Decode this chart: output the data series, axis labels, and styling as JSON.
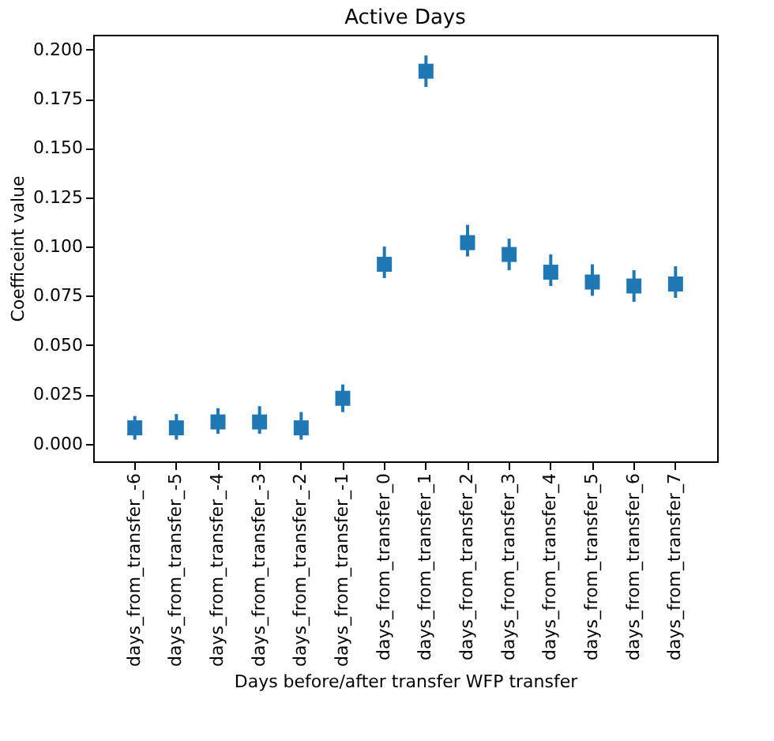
{
  "chart_data": {
    "type": "scatter",
    "title": "Active Days",
    "xlabel": "Days before/after transfer WFP transfer",
    "ylabel": "Coefficeint value",
    "categories": [
      "days_from_transfer_-6",
      "days_from_transfer_-5",
      "days_from_transfer_-4",
      "days_from_transfer_-3",
      "days_from_transfer_-2",
      "days_from_transfer_-1",
      "days_from_transfer_0",
      "days_from_transfer_1",
      "days_from_transfer_2",
      "days_from_transfer_3",
      "days_from_transfer_4",
      "days_from_transfer_5",
      "days_from_transfer_6",
      "days_from_transfer_7"
    ],
    "series": [
      {
        "color": "#1f77b4",
        "values": [
          0.008,
          0.008,
          0.011,
          0.011,
          0.008,
          0.023,
          0.091,
          0.189,
          0.102,
          0.096,
          0.087,
          0.082,
          0.08,
          0.081
        ],
        "errors": [
          [
            0.002,
            0.014
          ],
          [
            0.002,
            0.015
          ],
          [
            0.005,
            0.018
          ],
          [
            0.005,
            0.019
          ],
          [
            0.002,
            0.016
          ],
          [
            0.016,
            0.03
          ],
          [
            0.084,
            0.1
          ],
          [
            0.181,
            0.197
          ],
          [
            0.095,
            0.111
          ],
          [
            0.088,
            0.104
          ],
          [
            0.08,
            0.096
          ],
          [
            0.075,
            0.091
          ],
          [
            0.072,
            0.088
          ],
          [
            0.074,
            0.09
          ]
        ]
      }
    ],
    "ylim": [
      -0.009,
      0.2075
    ],
    "yticks": [
      {
        "value": 0,
        "label": "0.000"
      },
      0.025,
      {
        "value": 0.05,
        "label": "0.050"
      },
      0.075,
      {
        "value": 0.1,
        "label": "0.100"
      },
      0.125,
      {
        "value": 0.15,
        "label": "0.150"
      },
      0.175,
      {
        "value": 0.2,
        "label": "0.200"
      }
    ],
    "marker": "square",
    "grid": false
  }
}
